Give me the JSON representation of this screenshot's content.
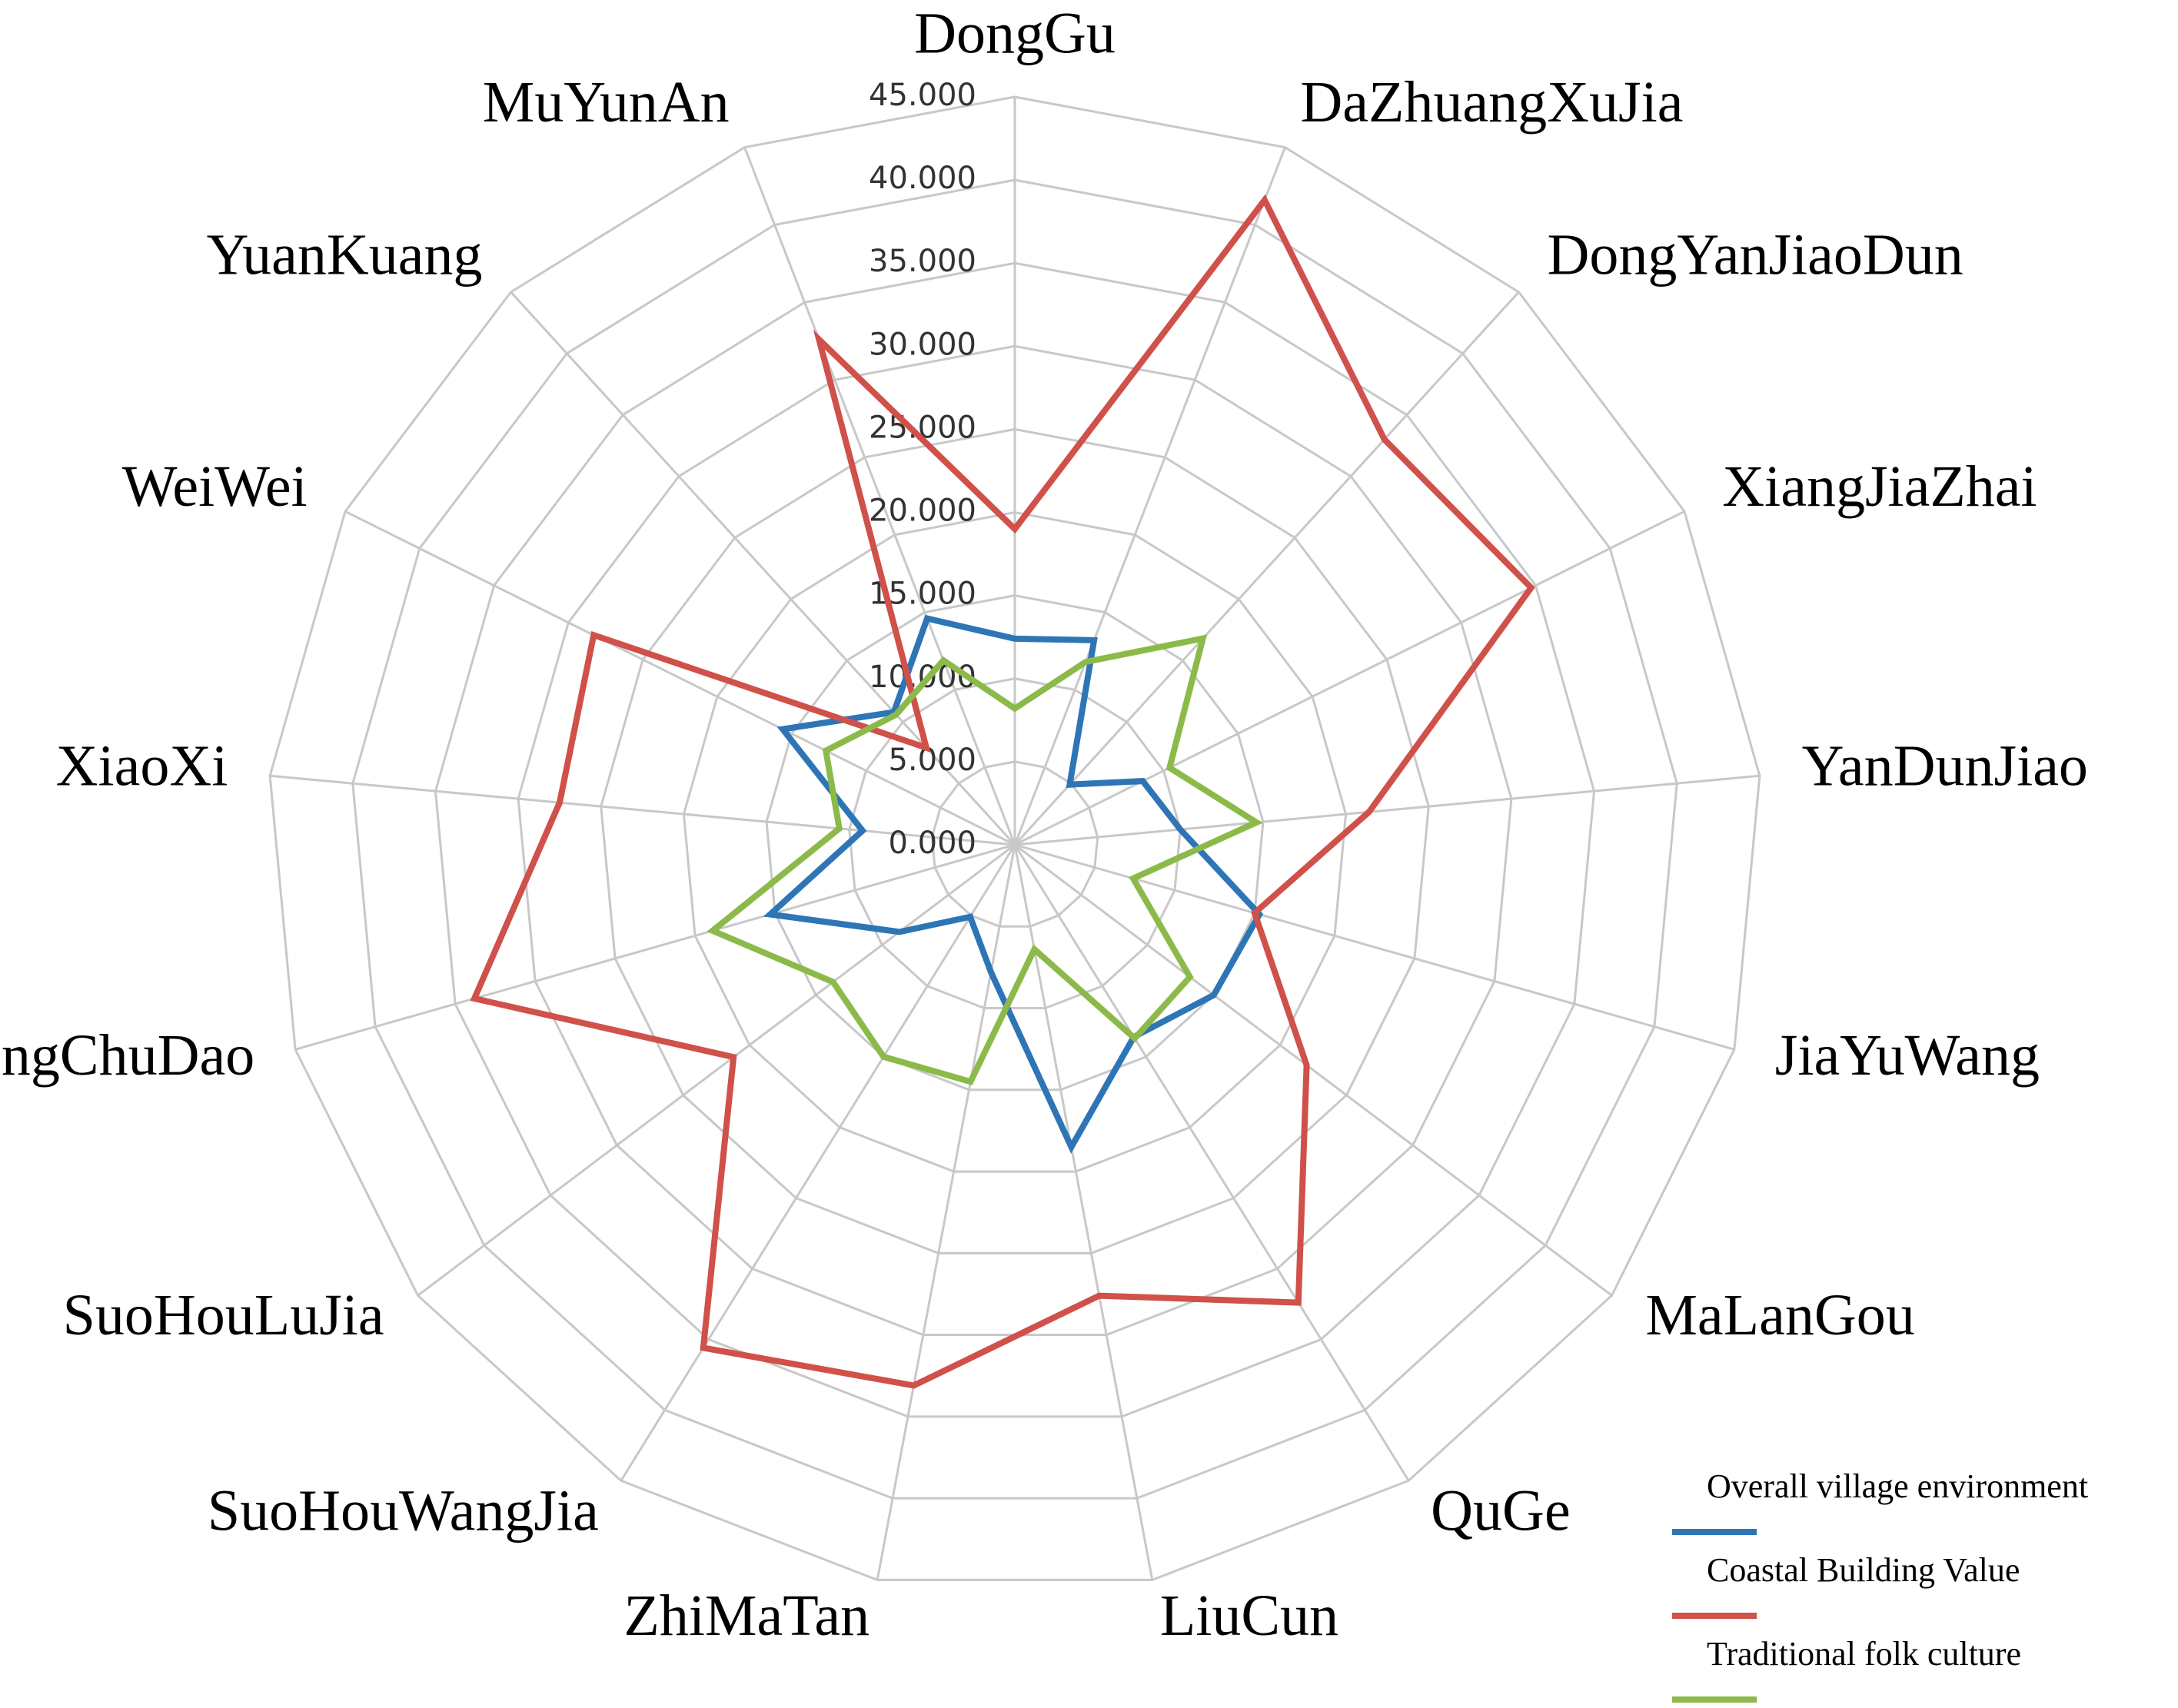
{
  "chart_data": {
    "type": "radar",
    "categories": [
      "DongGu",
      "DaZhuangXuJia",
      "DongYanJiaoDun",
      "XiangJiaZhai",
      "YanDunJiao",
      "JiaYuWang",
      "MaLanGou",
      "QuGe",
      "LiuCun",
      "ZhiMaTan",
      "SuoHouWangJia",
      "SuoHouLuJia",
      "DongChuDao",
      "XiaoXi",
      "WeiWei",
      "YuanKuang",
      "MuYunAn"
    ],
    "series": [
      {
        "name": "Overall village environment",
        "color": "#2e75b6",
        "values": [
          12.4,
          13.2,
          4.9,
          8.6,
          10,
          15.3,
          15,
          13.6,
          18.5,
          7.8,
          5.1,
          8.7,
          15.3,
          9.2,
          15.6,
          10.8,
          14.6
        ]
      },
      {
        "name": "Coastal Building Value",
        "color": "#d0504a",
        "values": [
          19,
          41.6,
          33,
          34.7,
          21.4,
          15,
          22,
          32.4,
          27.6,
          33.1,
          35.6,
          21.2,
          33.8,
          27.5,
          28.3,
          7.9,
          32.6
        ]
      },
      {
        "name": "Traditional folk culture",
        "color": "#8cba4a",
        "values": [
          8.2,
          11.8,
          16.8,
          10.4,
          14.6,
          7.4,
          13.2,
          13.7,
          6.4,
          14.5,
          15,
          13.7,
          18.9,
          10.6,
          12.7,
          10.6,
          11.9
        ]
      }
    ],
    "ylim": [
      0,
      45
    ],
    "yticks": [
      {
        "value": 0,
        "label": "0.000"
      },
      {
        "value": 5,
        "label": "5.000"
      },
      {
        "value": 10,
        "label": "10.000"
      },
      {
        "value": 15,
        "label": "15.000"
      },
      {
        "value": 20,
        "label": "20.000"
      },
      {
        "value": 25,
        "label": "25.000"
      },
      {
        "value": 30,
        "label": "30.000"
      },
      {
        "value": 35,
        "label": "35.000"
      },
      {
        "value": 40,
        "label": "40.000"
      },
      {
        "value": 45,
        "label": "45.000"
      }
    ],
    "grid": true
  }
}
